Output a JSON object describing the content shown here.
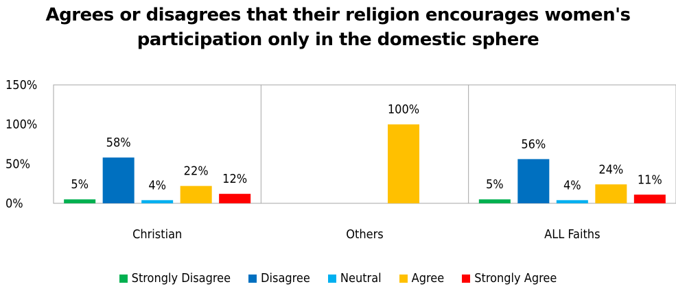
{
  "chart_data": {
    "type": "bar",
    "title": "Agrees or disagrees that their religion encourages women's participation only in the domestic sphere",
    "title_lines": [
      "Agrees or disagrees that their religion encourages women's",
      "participation only in the domestic sphere"
    ],
    "categories": [
      "Christian",
      "Others",
      "ALL Faiths"
    ],
    "ylim": [
      0,
      150
    ],
    "yticks": [
      "0%",
      "50%",
      "100%",
      "150%"
    ],
    "ytick_values": [
      0,
      50,
      100,
      150
    ],
    "legend_position": "bottom",
    "grid": false,
    "series": [
      {
        "name": "Strongly Disagree",
        "color": "#00b050",
        "values": [
          5,
          null,
          5
        ],
        "labels": [
          "5%",
          "",
          "5%"
        ]
      },
      {
        "name": "Disagree",
        "color": "#0070c0",
        "values": [
          58,
          null,
          56
        ],
        "labels": [
          "58%",
          "",
          "56%"
        ]
      },
      {
        "name": "Neutral",
        "color": "#00b0f0",
        "values": [
          4,
          null,
          4
        ],
        "labels": [
          "4%",
          "",
          "4%"
        ]
      },
      {
        "name": "Agree",
        "color": "#ffc000",
        "values": [
          22,
          100,
          24
        ],
        "labels": [
          "22%",
          "100%",
          "24%"
        ]
      },
      {
        "name": "Strongly Agree",
        "color": "#ff0000",
        "values": [
          12,
          null,
          11
        ],
        "labels": [
          "12%",
          "",
          "11%"
        ]
      }
    ]
  }
}
